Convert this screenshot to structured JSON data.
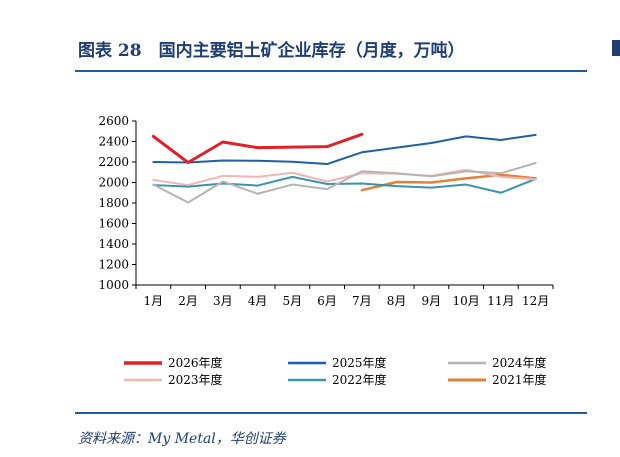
{
  "header": {
    "title": "图表 28　国内主要铝土矿企业库存（月度，万吨）"
  },
  "footer": {
    "source": "资料来源：My Metal，华创证券"
  },
  "chart_data": {
    "type": "line",
    "categories": [
      "1月",
      "2月",
      "3月",
      "4月",
      "5月",
      "6月",
      "7月",
      "8月",
      "9月",
      "10月",
      "11月",
      "12月"
    ],
    "ylim": [
      1000,
      2600
    ],
    "yticks": [
      1000,
      1200,
      1400,
      1600,
      1800,
      2000,
      2200,
      2400,
      2600
    ],
    "grid": false,
    "legend_position": "bottom",
    "series": [
      {
        "name": "2026年度",
        "color": "#e0202a",
        "width": 3,
        "values": [
          2450,
          2195,
          2395,
          2340,
          2345,
          2350,
          2470,
          null,
          null,
          null,
          null,
          null
        ]
      },
      {
        "name": "2025年度",
        "color": "#1f5fa8",
        "width": 2,
        "values": [
          2200,
          2195,
          2215,
          2212,
          2203,
          2180,
          2295,
          2340,
          2385,
          2450,
          2415,
          2465
        ]
      },
      {
        "name": "2024年度",
        "color": "#b4b4b4",
        "width": 2,
        "values": [
          1980,
          1805,
          2010,
          1890,
          1980,
          1935,
          2110,
          2090,
          2060,
          2110,
          2090,
          2190
        ]
      },
      {
        "name": "2023年度",
        "color": "#f0b6b6",
        "width": 2,
        "values": [
          2025,
          1975,
          2065,
          2055,
          2095,
          2010,
          2090,
          2085,
          2065,
          2125,
          2055,
          2030
        ]
      },
      {
        "name": "2022年度",
        "color": "#3a93ad",
        "width": 2,
        "values": [
          1975,
          1960,
          1990,
          1970,
          2055,
          1985,
          1990,
          1965,
          1950,
          1980,
          1900,
          2035
        ]
      },
      {
        "name": "2021年度",
        "color": "#e2823a",
        "width": 2.5,
        "values": [
          null,
          null,
          null,
          null,
          null,
          null,
          1925,
          2005,
          2000,
          2040,
          2075,
          2040
        ]
      }
    ]
  }
}
